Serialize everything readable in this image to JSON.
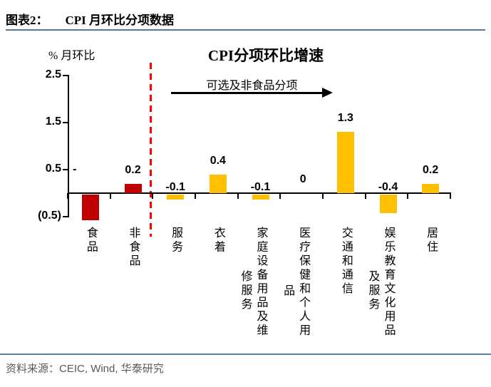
{
  "header": {
    "tag": "图表2：",
    "title": "CPI 月环比分项数据"
  },
  "footer": {
    "source_label": "资料来源：",
    "source": "CEIC, Wind, 华泰研究"
  },
  "colors": {
    "header_rule": "#54779F",
    "footer_rule": "#5B7EA6",
    "divider_line": "#FF0000",
    "bar_food_group": "#C00000",
    "bar_non_food_items": "#FFC000",
    "axis": "#000000"
  },
  "chart_data": {
    "type": "bar",
    "title": "CPI分项环比增速",
    "ylabel": "% 月环比",
    "annotation": "可选及非食品分项",
    "grid": false,
    "ylim": [
      -0.55,
      2.5
    ],
    "yticks": [
      {
        "value": 2.5,
        "label": "2.5"
      },
      {
        "value": 1.5,
        "label": "1.5"
      },
      {
        "value": 0.5,
        "label": "0.5"
      },
      {
        "value": -0.5,
        "label": "(0.5)"
      }
    ],
    "divider_after_category": "非食品",
    "categories": [
      {
        "name": "食品",
        "lines": [
          "食品"
        ],
        "value": -0.55,
        "label": "-",
        "color": "#C00000"
      },
      {
        "name": "非食品",
        "lines": [
          "非食品"
        ],
        "value": 0.2,
        "label": "0.2",
        "color": "#C00000"
      },
      {
        "name": "服务",
        "lines": [
          "服务"
        ],
        "value": -0.1,
        "label": "-0.1",
        "color": "#FFC000"
      },
      {
        "name": "衣着",
        "lines": [
          "衣着"
        ],
        "value": 0.4,
        "label": "0.4",
        "color": "#FFC000"
      },
      {
        "name": "家庭设备用品及维修服务",
        "lines": [
          "家庭设备用品及维",
          "修服务"
        ],
        "value": -0.1,
        "label": "-0.1",
        "color": "#FFC000"
      },
      {
        "name": "医疗保健和个人用品",
        "lines": [
          "医疗保健和个人用",
          "品"
        ],
        "value": 0,
        "label": "0",
        "color": "#FFC000"
      },
      {
        "name": "交通和通信",
        "lines": [
          "交通和通信"
        ],
        "value": 1.3,
        "label": "1.3",
        "color": "#FFC000"
      },
      {
        "name": "娱乐教育文化用品及服务",
        "lines": [
          "娱乐教育文化用品",
          "及服务"
        ],
        "value": -0.4,
        "label": "-0.4",
        "color": "#FFC000"
      },
      {
        "name": "居住",
        "lines": [
          "居住"
        ],
        "value": 0.2,
        "label": "0.2",
        "color": "#FFC000"
      }
    ]
  }
}
